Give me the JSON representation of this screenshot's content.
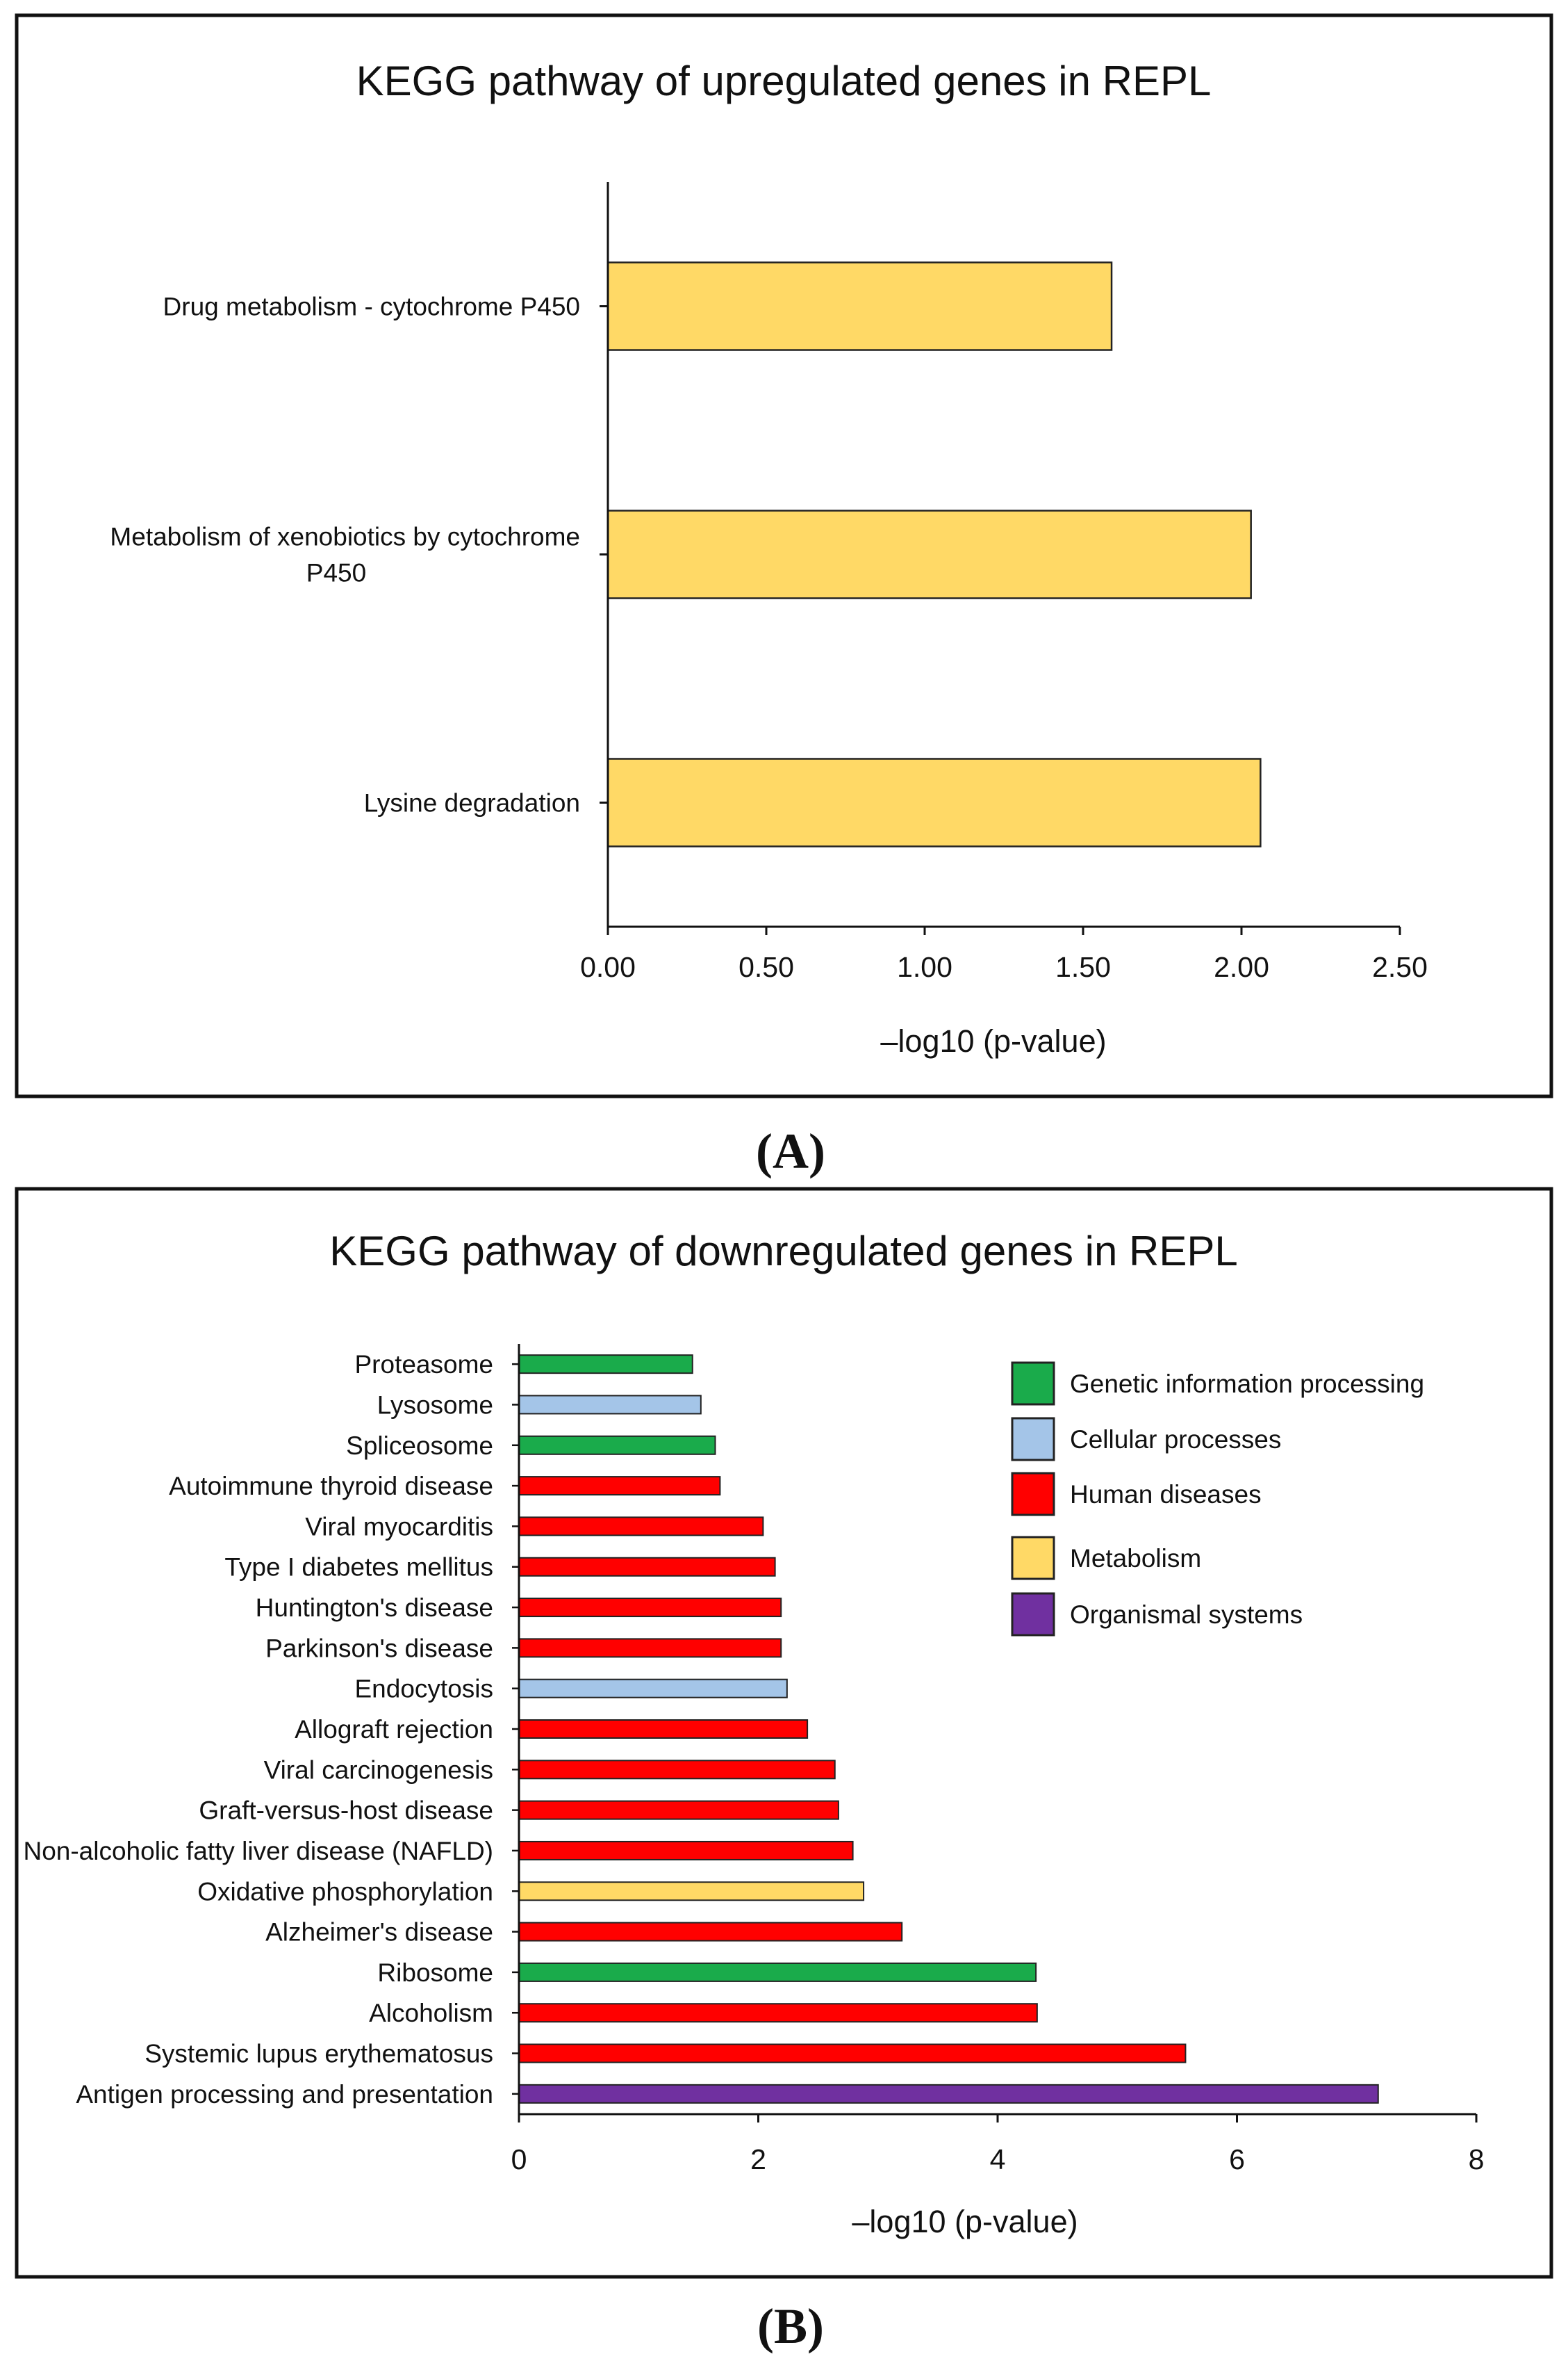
{
  "chart_data": [
    {
      "type": "bar",
      "orientation": "horizontal",
      "title": "KEGG pathway of upregulated genes in REPL",
      "panel_label": "(A)",
      "categories": [
        "Drug metabolism - cytochrome P450",
        "Metabolism of xenobiotics by cytochrome P450",
        "Lysine degradation"
      ],
      "category_lines": [
        [
          "Drug metabolism - cytochrome P450"
        ],
        [
          "Metabolism of xenobiotics by cytochrome",
          "P450"
        ],
        [
          "Lysine degradation"
        ]
      ],
      "values": [
        1.59,
        2.03,
        2.06
      ],
      "groups": [
        "Metabolism",
        "Metabolism",
        "Metabolism"
      ],
      "xlabel": "–log10 (p-value)",
      "ylabel": "",
      "xlim": [
        0,
        2.5
      ],
      "xticks": [
        0,
        0.5,
        1,
        1.5,
        2,
        2.5
      ],
      "xtick_labels": [
        "0.00",
        "0.50",
        "1.00",
        "1.50",
        "2.00",
        "2.50"
      ],
      "grid": false
    },
    {
      "type": "bar",
      "orientation": "horizontal",
      "title": "KEGG pathway of downregulated genes in REPL",
      "panel_label": "(B)",
      "categories": [
        "Proteasome",
        "Lysosome",
        "Spliceosome",
        "Autoimmune thyroid disease",
        "Viral myocarditis",
        "Type I diabetes mellitus",
        "Huntington's disease",
        "Parkinson's disease",
        "Endocytosis",
        "Allograft rejection",
        "Viral carcinogenesis",
        "Graft-versus-host disease",
        "Non-alcoholic fatty liver disease (NAFLD)",
        "Oxidative phosphorylation",
        "Alzheimer's disease",
        "Ribosome",
        "Alcoholism",
        "Systemic lupus erythematosus",
        "Antigen processing and presentation"
      ],
      "values": [
        1.45,
        1.52,
        1.64,
        1.68,
        2.04,
        2.14,
        2.19,
        2.19,
        2.24,
        2.41,
        2.64,
        2.67,
        2.79,
        2.88,
        3.2,
        4.32,
        4.33,
        5.57,
        7.18
      ],
      "groups": [
        "Genetic information processing",
        "Cellular processes",
        "Genetic information processing",
        "Human diseases",
        "Human diseases",
        "Human diseases",
        "Human diseases",
        "Human diseases",
        "Cellular processes",
        "Human diseases",
        "Human diseases",
        "Human diseases",
        "Human diseases",
        "Metabolism",
        "Human diseases",
        "Genetic information processing",
        "Human diseases",
        "Human diseases",
        "Organismal systems"
      ],
      "xlabel": "–log10 (p-value)",
      "ylabel": "",
      "xlim": [
        0,
        8
      ],
      "xticks": [
        0,
        2,
        4,
        6,
        8
      ],
      "xtick_labels": [
        "0",
        "2",
        "4",
        "6",
        "8"
      ],
      "grid": false,
      "legend": {
        "placement": "top-right",
        "entries": [
          "Genetic information processing",
          "Cellular processes",
          "Human diseases",
          "Metabolism",
          "Organismal systems"
        ]
      }
    }
  ],
  "colors": {
    "Genetic information processing": "#1aab4b",
    "Cellular processes": "#a4c5e8",
    "Human diseases": "#ff0000",
    "Metabolism": "#ffd966",
    "Organismal systems": "#7030a0"
  }
}
